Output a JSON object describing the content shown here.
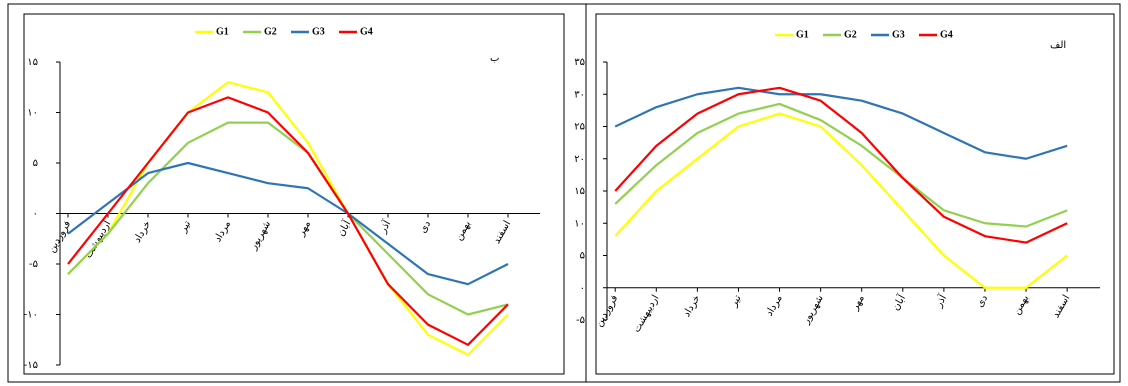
{
  "chart_data": [
    {
      "type": "line",
      "title": "ب",
      "categories": [
        "فروردین",
        "اردیبهشت",
        "خرداد",
        "تیر",
        "مرداد",
        "شهریور",
        "مهر",
        "آبان",
        "آذر",
        "دی",
        "بهمن",
        "اسفند"
      ],
      "series": [
        {
          "name": "G1",
          "color": "#ffff00",
          "values": [
            -6,
            -2,
            5,
            10,
            13,
            12,
            7,
            0,
            -7,
            -12,
            -14,
            -10
          ]
        },
        {
          "name": "G2",
          "color": "#92d050",
          "values": [
            -6,
            -2,
            3,
            7,
            9,
            9,
            6,
            0,
            -4,
            -8,
            -10,
            -9
          ]
        },
        {
          "name": "G3",
          "color": "#2e75b6",
          "values": [
            -2,
            1,
            4,
            5,
            4,
            3,
            2.5,
            0,
            -3,
            -6,
            -7,
            -5
          ]
        },
        {
          "name": "G4",
          "color": "#ff0000",
          "values": [
            -5,
            0,
            5,
            10,
            11.5,
            10,
            6,
            0,
            -7,
            -11,
            -13,
            -9
          ]
        }
      ],
      "ylim": [
        -15,
        15
      ],
      "yticks": [
        {
          "value": -15,
          "label": "-۱۵"
        },
        {
          "value": -10,
          "label": "-۱۰"
        },
        {
          "value": -5,
          "label": "-۵"
        },
        {
          "value": 0,
          "label": "۰"
        },
        {
          "value": 5,
          "label": "۵"
        },
        {
          "value": 10,
          "label": "۱۰"
        },
        {
          "value": 15,
          "label": "۱۵"
        }
      ]
    },
    {
      "type": "line",
      "title": "الف",
      "categories": [
        "فروردین",
        "اردیبهشت",
        "خرداد",
        "تیر",
        "مرداد",
        "شهریور",
        "مهر",
        "آبان",
        "آذر",
        "دی",
        "بهمن",
        "اسفند"
      ],
      "series": [
        {
          "name": "G1",
          "color": "#ffff00",
          "values": [
            8,
            15,
            20,
            25,
            27,
            25,
            19,
            12,
            5,
            0,
            0,
            5
          ]
        },
        {
          "name": "G2",
          "color": "#92d050",
          "values": [
            13,
            19,
            24,
            27,
            28.5,
            26,
            22,
            17,
            12,
            10,
            9.5,
            12
          ]
        },
        {
          "name": "G3",
          "color": "#2e75b6",
          "values": [
            25,
            28,
            30,
            31,
            30,
            30,
            29,
            27,
            24,
            21,
            20,
            22
          ]
        },
        {
          "name": "G4",
          "color": "#ff0000",
          "values": [
            15,
            22,
            27,
            30,
            31,
            29,
            24,
            17,
            11,
            8,
            7,
            10
          ]
        }
      ],
      "ylim": [
        -5,
        35
      ],
      "yticks": [
        {
          "value": -5,
          "label": "-۵"
        },
        {
          "value": 0,
          "label": "۰"
        },
        {
          "value": 5,
          "label": "۵"
        },
        {
          "value": 10,
          "label": "۱۰"
        },
        {
          "value": 15,
          "label": "۱۵"
        },
        {
          "value": 20,
          "label": "۲۰"
        },
        {
          "value": 25,
          "label": "۲۵"
        },
        {
          "value": 30,
          "label": "۳۰"
        },
        {
          "value": 35,
          "label": "۳۵"
        }
      ]
    }
  ]
}
